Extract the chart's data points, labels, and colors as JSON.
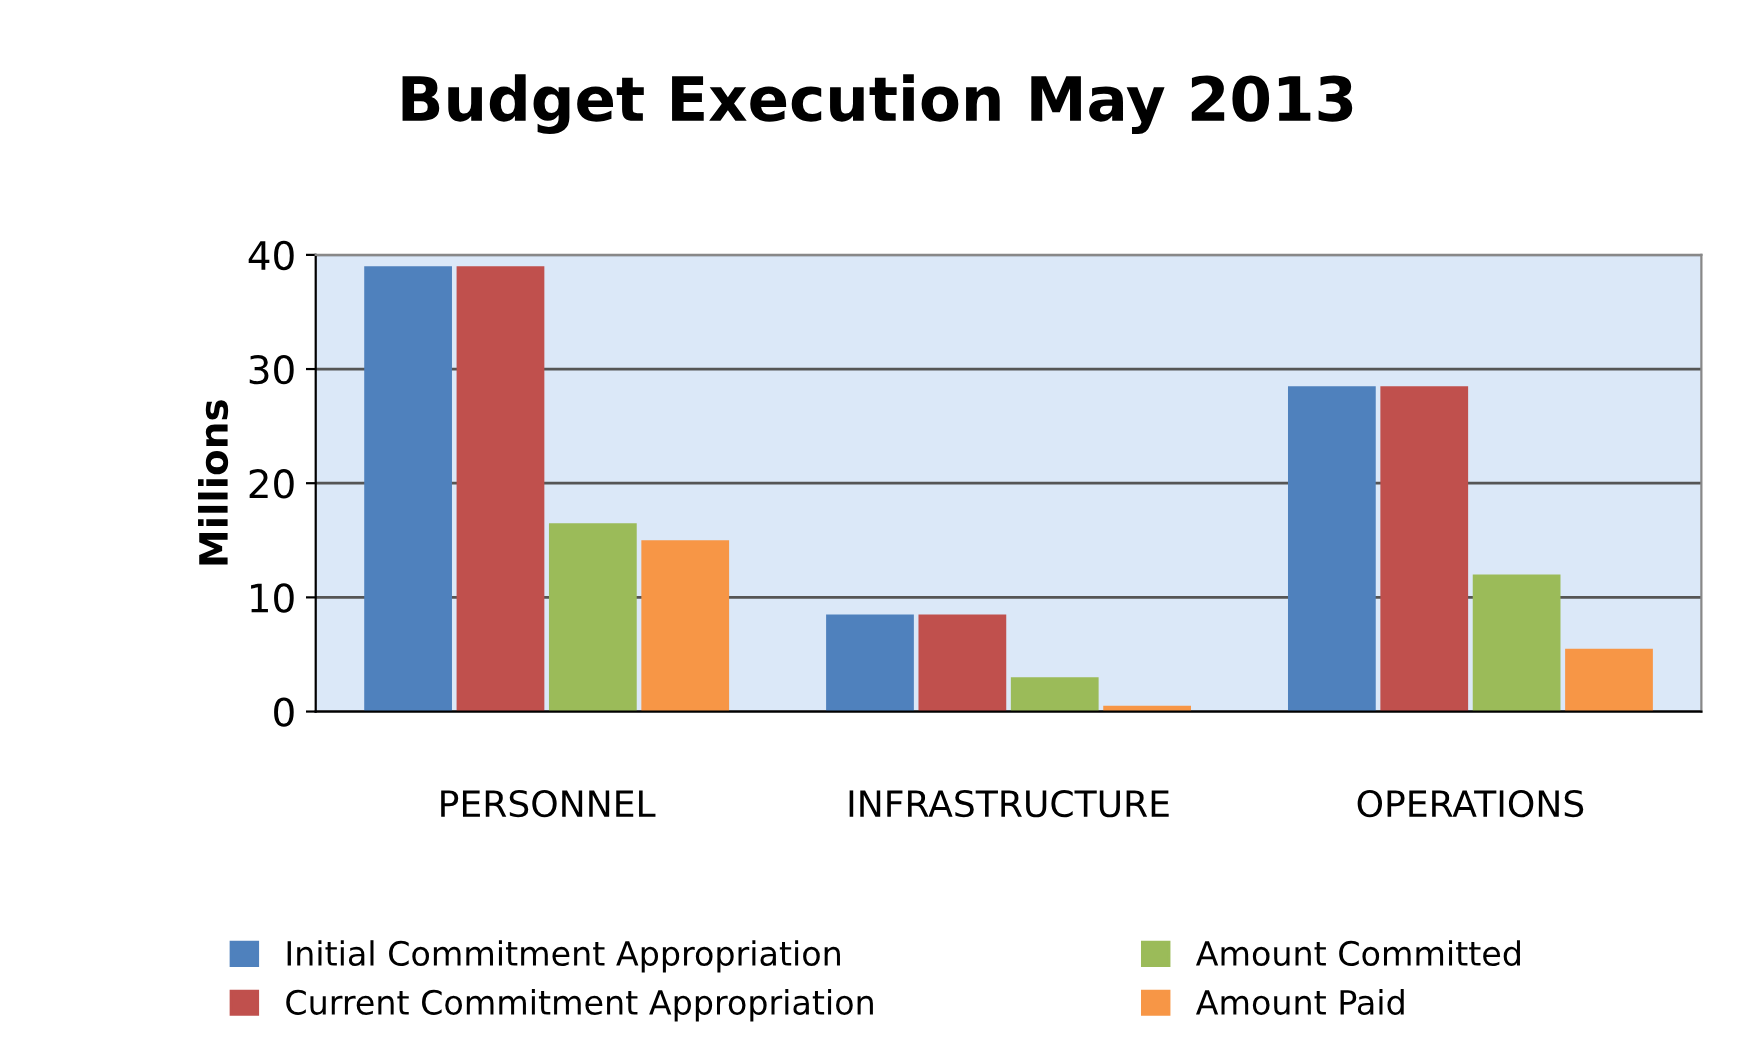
{
  "chart_data": {
    "type": "bar",
    "title": "Budget Execution May 2013",
    "ylabel": "Millions",
    "categories": [
      "PERSONNEL",
      "INFRASTRUCTURE",
      "OPERATIONS"
    ],
    "series": [
      {
        "name": "Initial Commitment Appropriation",
        "color": "#4f81bd",
        "values": [
          39,
          8.5,
          28.5
        ]
      },
      {
        "name": "Current Commitment Appropriation",
        "color": "#c0504d",
        "values": [
          39,
          8.5,
          28.5
        ]
      },
      {
        "name": "Amount Committed",
        "color": "#9bbb59",
        "values": [
          16.5,
          3,
          12
        ]
      },
      {
        "name": "Amount Paid",
        "color": "#f79646",
        "values": [
          15,
          0.5,
          5.5
        ]
      }
    ],
    "ylim": [
      0,
      40
    ],
    "yticks": [
      0,
      10,
      20,
      30,
      40
    ],
    "grid": "y",
    "legend": "bottom"
  }
}
